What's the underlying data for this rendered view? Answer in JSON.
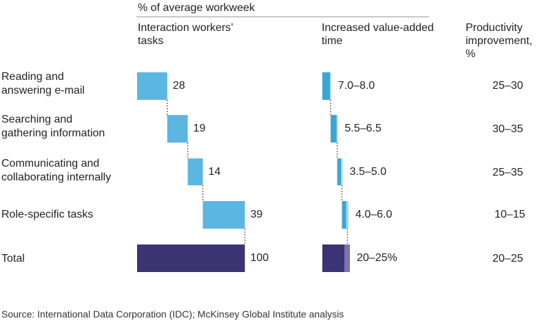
{
  "header": {
    "unit": "% of average workweek",
    "col1": [
      "Interaction workers’",
      "tasks"
    ],
    "col2": [
      "Increased value-added",
      "time"
    ],
    "col3": [
      "Productivity",
      "improvement,",
      "%"
    ]
  },
  "colors": {
    "task_bar": "#5bb6e2",
    "total_bar": "#3b3473",
    "added_low": "#3aa6d6",
    "added_range": "#a9d8ee",
    "total_range": "#7b73b0",
    "connector": "#777777"
  },
  "chart_data": {
    "type": "bar",
    "title": "% of average workweek",
    "categories": [
      [
        "Reading and",
        "answering e-mail"
      ],
      [
        "Searching and",
        "gathering information"
      ],
      [
        "Communicating and",
        "collaborating internally"
      ],
      [
        "Role-specific tasks"
      ],
      [
        "Total"
      ]
    ],
    "tasks": {
      "label": "Interaction workers’ tasks",
      "values": [
        28,
        19,
        14,
        39,
        100
      ],
      "labels": [
        "28",
        "19",
        "14",
        "39",
        "100"
      ]
    },
    "added_time": {
      "label": "Increased value-added time",
      "ranges": [
        [
          7.0,
          8.0
        ],
        [
          5.5,
          6.5
        ],
        [
          3.5,
          5.0
        ],
        [
          4.0,
          6.0
        ],
        [
          20,
          25
        ]
      ],
      "labels": [
        "7.0–8.0",
        "5.5–6.5",
        "3.5–5.0",
        "4.0–6.0",
        "20–25%"
      ]
    },
    "productivity": {
      "label": "Productivity improvement, %",
      "labels": [
        "25–30",
        "30–35",
        "25–35",
        "10–15",
        "20–25"
      ]
    }
  },
  "source": "Source: International Data Corporation (IDC); McKinsey Global Institute analysis"
}
